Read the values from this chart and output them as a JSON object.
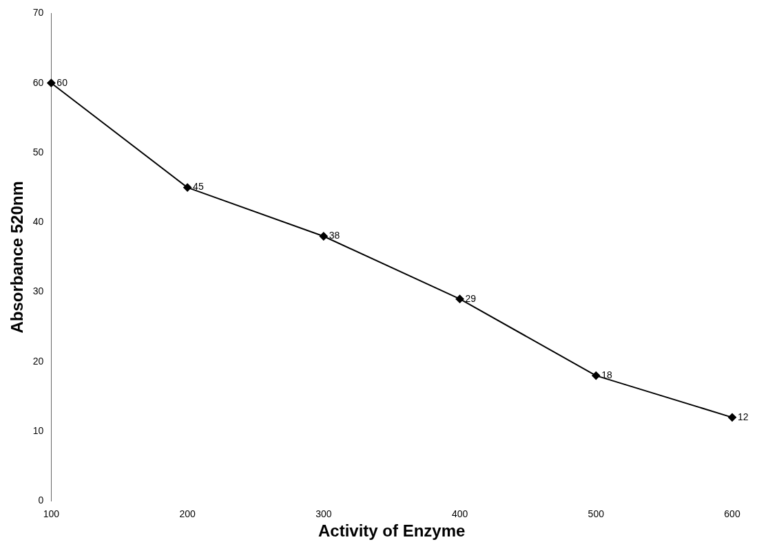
{
  "chart_data": {
    "type": "line",
    "xlabel": "Activity of Enzyme",
    "ylabel": "Absorbance 520nm",
    "categories": [
      "100",
      "200",
      "300",
      "400",
      "500",
      "600"
    ],
    "series": [
      {
        "color": "#000000",
        "values": [
          60,
          45,
          38,
          29,
          18,
          12
        ]
      }
    ],
    "ylim": [
      0,
      70
    ],
    "yticks": [
      0,
      10,
      20,
      30,
      40,
      50,
      60,
      70
    ],
    "grid": false,
    "legend": false,
    "marker": "diamond",
    "line_style": "solid",
    "data_labels": true
  }
}
